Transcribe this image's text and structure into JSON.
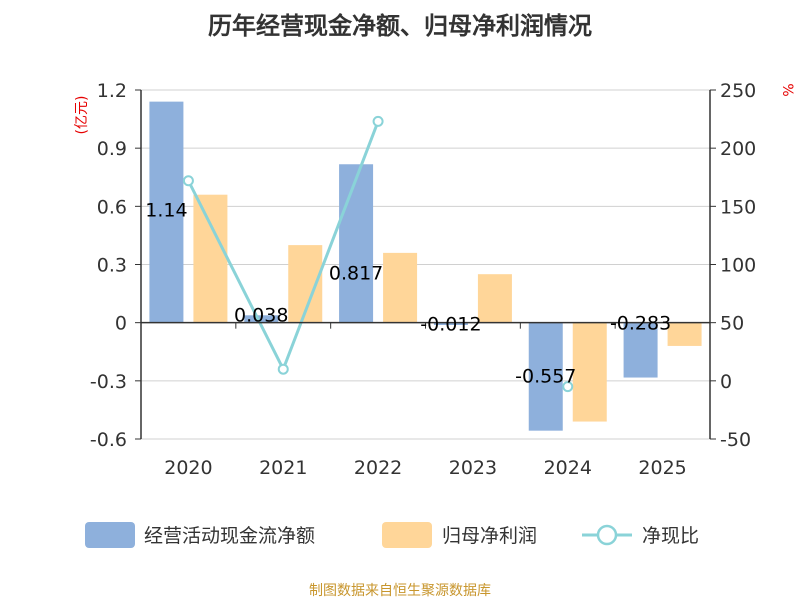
{
  "chart_data": {
    "type": "bar",
    "title": "历年经营现金净额、归母净利润情况",
    "categories": [
      "2020",
      "2021",
      "2022",
      "2023",
      "2024",
      "2025"
    ],
    "series": [
      {
        "name": "经营活动现金流净额",
        "kind": "bar",
        "axis": "left",
        "color": "#8eb0dc",
        "values": [
          1.14,
          0.038,
          0.817,
          -0.012,
          -0.557,
          -0.283
        ],
        "labels": [
          "1.14",
          "0.038",
          "0.817",
          "-0.012",
          "-0.557",
          "-0.283"
        ]
      },
      {
        "name": "归母净利润",
        "kind": "bar",
        "axis": "left",
        "color": "#ffd699",
        "values": [
          0.66,
          0.4,
          0.36,
          0.25,
          -0.51,
          -0.12
        ]
      },
      {
        "name": "净现比",
        "kind": "line",
        "axis": "right",
        "color": "#8ad3d8",
        "values": [
          172,
          10,
          223,
          null,
          -5,
          null
        ]
      }
    ],
    "left_axis": {
      "label": "(亿元)",
      "ylim": [
        -0.6,
        1.2
      ],
      "ticks": [
        1.2,
        0.9,
        0.6,
        0.3,
        0,
        -0.3,
        -0.6
      ],
      "tick_labels": [
        "1.2",
        "0.9",
        "0.6",
        "0.3",
        "0",
        "-0.3",
        "-0.6"
      ]
    },
    "right_axis": {
      "label": "%",
      "ylim": [
        -50,
        250
      ],
      "ticks": [
        250,
        200,
        150,
        100,
        50,
        0,
        -50
      ],
      "tick_labels": [
        "250",
        "200",
        "150",
        "100",
        "50",
        "0",
        "-50"
      ]
    },
    "grid": true,
    "legend_position": "bottom",
    "source": "制图数据来自恒生聚源数据库"
  }
}
